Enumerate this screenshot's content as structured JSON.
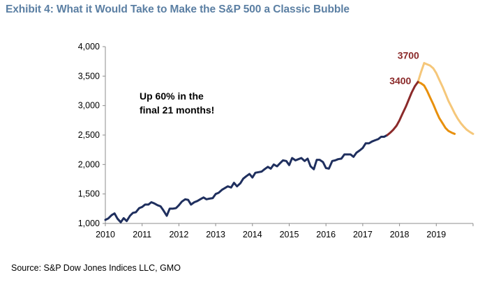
{
  "header": {
    "title": "Exhibit 4: What it Would Take to Make the S&P 500 a Classic Bubble"
  },
  "footer": {
    "source": "Source: S&P Dow Jones Indices LLC, GMO"
  },
  "colors": {
    "title": "#5b7fa3",
    "history": "#1f2f5e",
    "bubble_rise": "#8b2a2a",
    "decline_3400": "#e8900c",
    "decline_3700": "#f5c77a",
    "point_label": "#8b2a2a"
  },
  "chart_data": {
    "type": "line",
    "title": "Exhibit 4: What it Would Take to Make the S&P 500 a Classic Bubble",
    "xlabel": "",
    "ylabel": "",
    "xlim": [
      2010.0,
      2020.0
    ],
    "ylim": [
      1000,
      4000
    ],
    "x_ticks": [
      2010,
      2011,
      2012,
      2013,
      2014,
      2015,
      2016,
      2017,
      2018,
      2019
    ],
    "x_tick_labels": [
      "2010",
      "2011",
      "2012",
      "2013",
      "2014",
      "2015",
      "2016",
      "2017",
      "2018",
      "2019"
    ],
    "y_ticks": [
      1000,
      1500,
      2000,
      2500,
      3000,
      3500,
      4000
    ],
    "y_tick_labels": [
      "1,000",
      "1,500",
      "2,000",
      "2,500",
      "3,000",
      "3,500",
      "4,000"
    ],
    "grid": false,
    "annotation": [
      "Up 60% in the",
      "final 21 months!"
    ],
    "point_labels": [
      {
        "text": "3700",
        "x": 2018.65,
        "y": 3720
      },
      {
        "text": "3400",
        "x": 2018.47,
        "y": 3400
      }
    ],
    "series": [
      {
        "key": "history",
        "x": [
          2010.0,
          2010.08,
          2010.17,
          2010.25,
          2010.33,
          2010.42,
          2010.5,
          2010.58,
          2010.67,
          2010.75,
          2010.83,
          2010.92,
          2011.0,
          2011.08,
          2011.17,
          2011.25,
          2011.33,
          2011.42,
          2011.5,
          2011.58,
          2011.67,
          2011.75,
          2011.83,
          2011.92,
          2012.0,
          2012.08,
          2012.17,
          2012.25,
          2012.33,
          2012.42,
          2012.5,
          2012.58,
          2012.67,
          2012.75,
          2012.83,
          2012.92,
          2013.0,
          2013.08,
          2013.17,
          2013.25,
          2013.33,
          2013.42,
          2013.5,
          2013.58,
          2013.67,
          2013.75,
          2013.83,
          2013.92,
          2014.0,
          2014.08,
          2014.17,
          2014.25,
          2014.33,
          2014.42,
          2014.5,
          2014.58,
          2014.67,
          2014.75,
          2014.83,
          2014.92,
          2015.0,
          2015.08,
          2015.17,
          2015.25,
          2015.33,
          2015.42,
          2015.5,
          2015.58,
          2015.67,
          2015.75,
          2015.83,
          2015.92,
          2016.0,
          2016.08,
          2016.17,
          2016.25,
          2016.33,
          2016.42,
          2016.5,
          2016.58,
          2016.67,
          2016.75,
          2016.83,
          2016.92,
          2017.0,
          2017.08,
          2017.17,
          2017.25,
          2017.33,
          2017.42,
          2017.5,
          2017.58,
          2017.67
        ],
        "values": [
          1060,
          1085,
          1140,
          1170,
          1080,
          1020,
          1090,
          1040,
          1130,
          1180,
          1190,
          1260,
          1280,
          1320,
          1320,
          1360,
          1340,
          1310,
          1290,
          1220,
          1130,
          1250,
          1250,
          1260,
          1310,
          1370,
          1410,
          1400,
          1320,
          1360,
          1380,
          1410,
          1440,
          1410,
          1420,
          1430,
          1500,
          1520,
          1570,
          1600,
          1630,
          1610,
          1690,
          1630,
          1680,
          1760,
          1800,
          1840,
          1780,
          1860,
          1870,
          1880,
          1920,
          1960,
          1930,
          2000,
          1970,
          2020,
          2070,
          2060,
          1990,
          2110,
          2070,
          2090,
          2110,
          2060,
          2100,
          1970,
          1920,
          2080,
          2080,
          2040,
          1940,
          1930,
          2060,
          2070,
          2090,
          2100,
          2170,
          2170,
          2170,
          2130,
          2200,
          2240,
          2280,
          2360,
          2360,
          2390,
          2410,
          2430,
          2470,
          2470,
          2500
        ]
      },
      {
        "key": "bubble_rise",
        "x": [
          2017.67,
          2017.75,
          2017.83,
          2017.92,
          2018.0,
          2018.08,
          2018.17,
          2018.25,
          2018.33,
          2018.42,
          2018.5
        ],
        "values": [
          2500,
          2540,
          2590,
          2660,
          2750,
          2860,
          2980,
          3100,
          3220,
          3330,
          3400
        ]
      },
      {
        "key": "rise_to_3700",
        "x": [
          2018.5,
          2018.58,
          2018.67
        ],
        "values": [
          3400,
          3560,
          3720
        ]
      },
      {
        "key": "decline_3400",
        "x": [
          2018.5,
          2018.58,
          2018.67,
          2018.75,
          2018.83,
          2018.92,
          2019.0,
          2019.08,
          2019.17,
          2019.25,
          2019.33,
          2019.42,
          2019.5
        ],
        "values": [
          3400,
          3380,
          3340,
          3250,
          3140,
          3020,
          2900,
          2790,
          2700,
          2620,
          2570,
          2540,
          2520
        ]
      },
      {
        "key": "decline_3700",
        "x": [
          2018.67,
          2018.75,
          2018.83,
          2018.92,
          2019.0,
          2019.08,
          2019.17,
          2019.25,
          2019.33,
          2019.42,
          2019.5,
          2019.58,
          2019.67,
          2019.75,
          2019.83,
          2019.92,
          2020.0
        ],
        "values": [
          3720,
          3700,
          3680,
          3630,
          3550,
          3440,
          3320,
          3200,
          3080,
          2970,
          2870,
          2780,
          2700,
          2640,
          2590,
          2550,
          2520
        ]
      }
    ]
  }
}
